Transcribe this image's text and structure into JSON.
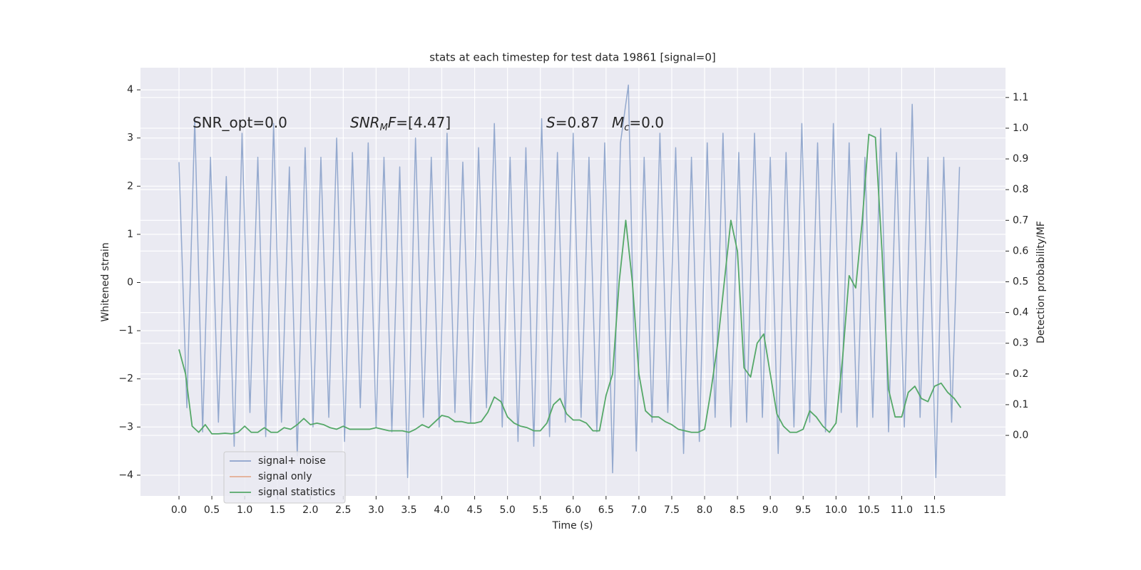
{
  "chart_data": {
    "type": "line",
    "title": "stats at each timestep for test data 19861 [signal=0]",
    "xlabel": "Time (s)",
    "ylabel": "Whitened strain",
    "y2label": "Detection probability/MF",
    "xlim": [
      -0.586,
      12.58
    ],
    "ylim": [
      -4.43,
      4.46
    ],
    "y2lim": [
      -0.197,
      1.197
    ],
    "xticks": [
      {
        "value": 0,
        "label": "0.0"
      },
      {
        "value": 0.5,
        "label": "0.5"
      },
      {
        "value": 1,
        "label": "1.0"
      },
      {
        "value": 1.5,
        "label": "1.5"
      },
      {
        "value": 2,
        "label": "2.0"
      },
      {
        "value": 2.5,
        "label": "2.5"
      },
      {
        "value": 3,
        "label": "3.0"
      },
      {
        "value": 3.5,
        "label": "3.5"
      },
      {
        "value": 4,
        "label": "4.0"
      },
      {
        "value": 4.5,
        "label": "4.5"
      },
      {
        "value": 5,
        "label": "5.0"
      },
      {
        "value": 5.5,
        "label": "5.5"
      },
      {
        "value": 6,
        "label": "6.0"
      },
      {
        "value": 6.5,
        "label": "6.5"
      },
      {
        "value": 7,
        "label": "7.0"
      },
      {
        "value": 7.5,
        "label": "7.5"
      },
      {
        "value": 8,
        "label": "8.0"
      },
      {
        "value": 8.5,
        "label": "8.5"
      },
      {
        "value": 9,
        "label": "9.0"
      },
      {
        "value": 9.5,
        "label": "9.5"
      },
      {
        "value": 10,
        "label": "10.0"
      },
      {
        "value": 10.5,
        "label": "10.5"
      },
      {
        "value": 11,
        "label": "11.0"
      },
      {
        "value": 11.5,
        "label": "11.5"
      }
    ],
    "yticks": [
      {
        "value": -4,
        "label": "−4"
      },
      {
        "value": -3,
        "label": "−3"
      },
      {
        "value": -2,
        "label": "−2"
      },
      {
        "value": -1,
        "label": "−1"
      },
      0,
      1,
      2,
      3,
      4
    ],
    "y2ticks": [
      {
        "value": 0,
        "label": "0.0"
      },
      {
        "value": 0.1,
        "label": "0.1"
      },
      {
        "value": 0.2,
        "label": "0.2"
      },
      {
        "value": 0.3,
        "label": "0.3"
      },
      {
        "value": 0.4,
        "label": "0.4"
      },
      {
        "value": 0.5,
        "label": "0.5"
      },
      {
        "value": 0.6,
        "label": "0.6"
      },
      {
        "value": 0.7,
        "label": "0.7"
      },
      {
        "value": 0.8,
        "label": "0.8"
      },
      {
        "value": 0.9,
        "label": "0.9"
      },
      {
        "value": 1,
        "label": "1.0"
      },
      {
        "value": 1.1,
        "label": "1.1"
      }
    ],
    "grid": true,
    "legend_position": "lower left",
    "annotations": [
      {
        "parts": [
          {
            "text": "SNR_opt=0.0"
          }
        ]
      },
      {
        "parts": [
          {
            "text": "SNR",
            "italic": true
          },
          {
            "text": "M",
            "italic": true,
            "sub": true
          },
          {
            "text": "F",
            "italic": true
          },
          {
            "text": "=[4.47]"
          }
        ]
      },
      {
        "parts": [
          {
            "text": "S",
            "italic": true
          },
          {
            "text": "=0.87"
          }
        ]
      },
      {
        "parts": [
          {
            "text": "M",
            "italic": true
          },
          {
            "text": "c",
            "italic": true,
            "sub": true
          },
          {
            "text": "=0.0"
          }
        ]
      }
    ],
    "series": [
      {
        "name": "signal+ noise",
        "color": "#4c72b0",
        "x": [
          0,
          0.12,
          0.24,
          0.36,
          0.48,
          0.6,
          0.72,
          0.84,
          0.96,
          1.08,
          1.2,
          1.32,
          1.44,
          1.56,
          1.68,
          1.8,
          1.92,
          2.04,
          2.16,
          2.28,
          2.4,
          2.52,
          2.64,
          2.76,
          2.88,
          3,
          3.12,
          3.24,
          3.36,
          3.48,
          3.6,
          3.72,
          3.84,
          3.96,
          4.08,
          4.2,
          4.32,
          4.44,
          4.56,
          4.68,
          4.8,
          4.92,
          5.04,
          5.16,
          5.28,
          5.4,
          5.52,
          5.64,
          5.76,
          5.88,
          6,
          6.12,
          6.24,
          6.36,
          6.48,
          6.6,
          6.72,
          6.84,
          6.96,
          7.08,
          7.2,
          7.32,
          7.44,
          7.56,
          7.68,
          7.8,
          7.92,
          8.04,
          8.16,
          8.28,
          8.4,
          8.52,
          8.64,
          8.76,
          8.88,
          9,
          9.12,
          9.24,
          9.36,
          9.48,
          9.6,
          9.72,
          9.84,
          9.96,
          10.08,
          10.2,
          10.32,
          10.44,
          10.56,
          10.68,
          10.8,
          10.92,
          11.04,
          11.16,
          11.28,
          11.4,
          11.52,
          11.64,
          11.76,
          11.88
        ],
        "values": [
          2.5,
          -2.6,
          3.4,
          -3.1,
          2.6,
          -2.9,
          2.2,
          -3.4,
          3.1,
          -2.7,
          2.6,
          -3.2,
          3.3,
          -2.9,
          2.4,
          -3.6,
          2.8,
          -3.0,
          2.6,
          -2.8,
          3.0,
          -3.3,
          2.7,
          -2.6,
          2.9,
          -3.0,
          2.6,
          -3.1,
          2.4,
          -4.05,
          3.0,
          -2.8,
          2.6,
          -3.0,
          3.1,
          -2.7,
          2.5,
          -2.9,
          2.8,
          -2.6,
          3.3,
          -3.0,
          2.6,
          -3.3,
          2.8,
          -3.4,
          3.4,
          -3.2,
          2.7,
          -2.9,
          3.1,
          -2.8,
          2.6,
          -3.1,
          2.9,
          -3.95,
          2.9,
          4.1,
          -3.5,
          2.6,
          -2.9,
          3.1,
          -2.7,
          2.8,
          -3.55,
          2.6,
          -3.3,
          2.9,
          -2.8,
          3.1,
          -3.0,
          2.7,
          -2.9,
          3.1,
          -2.8,
          2.6,
          -3.55,
          2.7,
          -3.0,
          3.3,
          -2.9,
          2.9,
          -3.1,
          3.3,
          -2.7,
          2.9,
          -3.0,
          2.6,
          -2.8,
          3.2,
          -3.1,
          2.7,
          -3.0,
          3.7,
          -2.8,
          2.6,
          -4.05,
          2.6,
          -2.9,
          2.4
        ]
      },
      {
        "name": "signal only",
        "color": "#dd8452"
      },
      {
        "name": "signal statistics",
        "color": "#55a868",
        "axis": "y2",
        "x": [
          0,
          0.1,
          0.2,
          0.3,
          0.4,
          0.5,
          0.6,
          0.7,
          0.8,
          0.9,
          1,
          1.1,
          1.2,
          1.3,
          1.4,
          1.5,
          1.6,
          1.7,
          1.8,
          1.9,
          2,
          2.1,
          2.2,
          2.3,
          2.4,
          2.5,
          2.6,
          2.7,
          2.8,
          2.9,
          3,
          3.1,
          3.2,
          3.3,
          3.4,
          3.5,
          3.6,
          3.7,
          3.8,
          3.9,
          4,
          4.1,
          4.2,
          4.3,
          4.4,
          4.5,
          4.6,
          4.7,
          4.8,
          4.9,
          5,
          5.1,
          5.2,
          5.3,
          5.4,
          5.5,
          5.6,
          5.7,
          5.8,
          5.9,
          6,
          6.1,
          6.2,
          6.3,
          6.4,
          6.5,
          6.6,
          6.7,
          6.8,
          6.9,
          7,
          7.1,
          7.2,
          7.3,
          7.4,
          7.5,
          7.6,
          7.7,
          7.8,
          7.9,
          8,
          8.1,
          8.2,
          8.3,
          8.4,
          8.5,
          8.6,
          8.7,
          8.8,
          8.9,
          9,
          9.1,
          9.2,
          9.3,
          9.4,
          9.5,
          9.6,
          9.7,
          9.8,
          9.9,
          10,
          10.1,
          10.2,
          10.3,
          10.4,
          10.5,
          10.6,
          10.7,
          10.8,
          10.9,
          11,
          11.1,
          11.2,
          11.3,
          11.4,
          11.5,
          11.6,
          11.7,
          11.8,
          11.9
        ],
        "values": [
          0.28,
          0.2,
          0.03,
          0.01,
          0.035,
          0.005,
          0.005,
          0.007,
          0.005,
          0.01,
          0.03,
          0.01,
          0.01,
          0.025,
          0.01,
          0.01,
          0.025,
          0.02,
          0.035,
          0.055,
          0.035,
          0.04,
          0.035,
          0.025,
          0.02,
          0.03,
          0.02,
          0.02,
          0.02,
          0.02,
          0.025,
          0.02,
          0.015,
          0.015,
          0.015,
          0.01,
          0.02,
          0.035,
          0.025,
          0.045,
          0.065,
          0.06,
          0.045,
          0.045,
          0.04,
          0.04,
          0.045,
          0.075,
          0.125,
          0.11,
          0.06,
          0.04,
          0.03,
          0.025,
          0.015,
          0.015,
          0.04,
          0.1,
          0.12,
          0.07,
          0.05,
          0.05,
          0.04,
          0.015,
          0.015,
          0.13,
          0.2,
          0.5,
          0.7,
          0.5,
          0.2,
          0.08,
          0.06,
          0.06,
          0.045,
          0.035,
          0.02,
          0.015,
          0.01,
          0.01,
          0.02,
          0.15,
          0.3,
          0.5,
          0.7,
          0.6,
          0.22,
          0.19,
          0.3,
          0.33,
          0.2,
          0.07,
          0.03,
          0.01,
          0.01,
          0.02,
          0.08,
          0.06,
          0.03,
          0.01,
          0.04,
          0.25,
          0.52,
          0.48,
          0.7,
          0.98,
          0.97,
          0.6,
          0.15,
          0.06,
          0.06,
          0.14,
          0.16,
          0.12,
          0.11,
          0.16,
          0.17,
          0.14,
          0.12,
          0.09
        ]
      }
    ]
  }
}
